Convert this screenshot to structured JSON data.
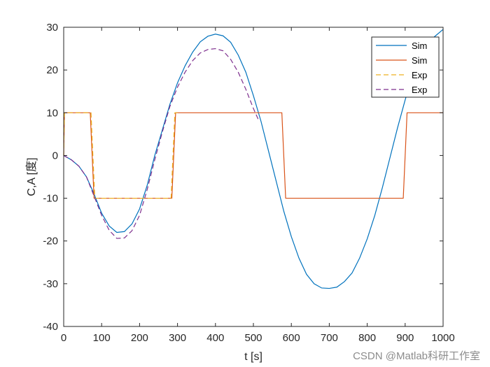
{
  "chart_data": {
    "type": "line",
    "xlabel": "t [s]",
    "ylabel": "C,A [度]",
    "xlim": [
      0,
      1000
    ],
    "ylim": [
      -40,
      30
    ],
    "xticks": [
      0,
      100,
      200,
      300,
      400,
      500,
      600,
      700,
      800,
      900,
      1000
    ],
    "yticks": [
      -40,
      -30,
      -20,
      -10,
      0,
      10,
      20,
      30
    ],
    "grid": false,
    "legend_position": "top-right",
    "series": [
      {
        "name": "Sim",
        "color": "#0072BD",
        "style": "solid",
        "x": [
          0,
          20,
          40,
          60,
          80,
          100,
          120,
          140,
          160,
          180,
          200,
          220,
          240,
          260,
          280,
          300,
          320,
          340,
          360,
          380,
          400,
          420,
          440,
          460,
          480,
          500,
          520,
          540,
          560,
          580,
          600,
          620,
          640,
          660,
          680,
          700,
          720,
          740,
          760,
          780,
          800,
          820,
          840,
          860,
          880,
          900,
          920,
          940,
          960,
          980,
          1000
        ],
        "y": [
          0,
          -1,
          -2.5,
          -5,
          -9,
          -13.5,
          -16.5,
          -18,
          -17.8,
          -16,
          -12.5,
          -7,
          0,
          6,
          12,
          17,
          21,
          24.2,
          26.6,
          27.9,
          28.4,
          28,
          26.5,
          23.5,
          19.5,
          14,
          8,
          1,
          -6,
          -13,
          -19,
          -24,
          -27.8,
          -30,
          -31,
          -31.1,
          -30.8,
          -29.5,
          -27.5,
          -24,
          -19.5,
          -14,
          -7.5,
          -0.5,
          6.5,
          13,
          19,
          23.5,
          26.5,
          28,
          29.5
        ]
      },
      {
        "name": "Sim",
        "color": "#D95319",
        "style": "solid",
        "x": [
          0,
          2,
          70,
          80,
          285,
          295,
          575,
          585,
          895,
          905,
          1000
        ],
        "y": [
          0,
          10,
          10,
          -10,
          -10,
          10,
          10,
          -10,
          -10,
          10,
          10
        ]
      },
      {
        "name": "Exp",
        "color": "#EDB120",
        "style": "dashed",
        "x": [
          0,
          2,
          72,
          82,
          283,
          293,
          300
        ],
        "y": [
          0,
          10,
          10,
          -10,
          -10,
          10,
          10
        ]
      },
      {
        "name": "Exp",
        "color": "#7E2F8E",
        "style": "dashed",
        "x": [
          0,
          20,
          40,
          60,
          80,
          100,
          120,
          140,
          160,
          180,
          200,
          220,
          240,
          260,
          280,
          300,
          320,
          340,
          360,
          380,
          400,
          420,
          440,
          460,
          480,
          500,
          515
        ],
        "y": [
          0,
          -1,
          -2.5,
          -5,
          -9.5,
          -14,
          -17.5,
          -19.4,
          -19.3,
          -17.6,
          -14,
          -8,
          -1,
          5.5,
          11.5,
          16,
          19.5,
          22.2,
          24,
          24.8,
          25,
          24.5,
          22.5,
          19.5,
          15.5,
          11,
          8
        ]
      }
    ]
  },
  "watermark": "CSDN @Matlab科研工作室"
}
